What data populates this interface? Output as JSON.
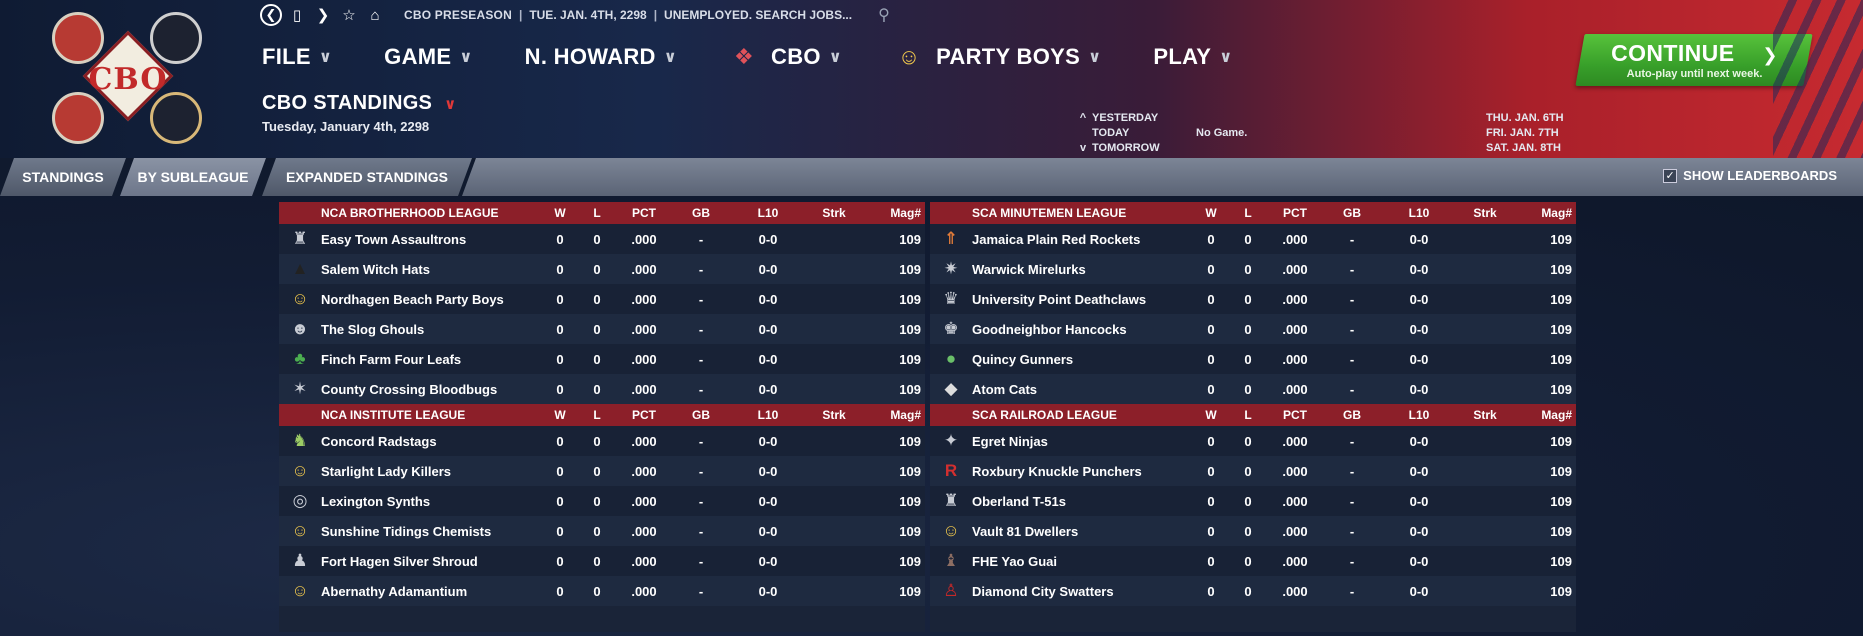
{
  "header": {
    "logo_text": "CBO",
    "status": {
      "season": "CBO PRESEASON",
      "date": "TUE. JAN. 4TH, 2298",
      "job": "UNEMPLOYED. SEARCH JOBS..."
    },
    "nav": [
      {
        "label": "FILE",
        "icon": ""
      },
      {
        "label": "GAME",
        "icon": ""
      },
      {
        "label": "N. HOWARD",
        "icon": ""
      },
      {
        "label": "CBO",
        "icon": "cbo-league-logo"
      },
      {
        "label": "PARTY BOYS",
        "icon": "vault-boy-mascot"
      },
      {
        "label": "PLAY",
        "icon": ""
      }
    ],
    "page_title": "CBO STANDINGS",
    "page_date": "Tuesday, January 4th, 2298",
    "schedule": {
      "rows": [
        {
          "arrow": "^",
          "label": "YESTERDAY",
          "game": "",
          "next": "THU. JAN. 6TH"
        },
        {
          "arrow": "",
          "label": "TODAY",
          "game": "No Game.",
          "next": "FRI. JAN. 7TH"
        },
        {
          "arrow": "v",
          "label": "TOMORROW",
          "game": "",
          "next": "SAT. JAN. 8TH"
        }
      ]
    },
    "continue": {
      "label": "CONTINUE",
      "sub": "Auto-play until next week."
    }
  },
  "tabs": [
    "STANDINGS",
    "BY SUBLEAGUE",
    "EXPANDED STANDINGS"
  ],
  "show_leaderboards": "SHOW LEADERBOARDS",
  "columns": [
    "W",
    "L",
    "PCT",
    "GB",
    "L10",
    "Strk",
    "Mag#"
  ],
  "leagues": {
    "left": [
      {
        "name": "NCA BROTHERHOOD LEAGUE",
        "teams": [
          {
            "name": "Easy Town Assaultrons",
            "icon": "robot-icon",
            "w": "0",
            "l": "0",
            "pct": ".000",
            "gb": "-",
            "l10": "0-0",
            "strk": "",
            "mag": "109"
          },
          {
            "name": "Salem Witch Hats",
            "icon": "witch-hat-icon",
            "w": "0",
            "l": "0",
            "pct": ".000",
            "gb": "-",
            "l10": "0-0",
            "strk": "",
            "mag": "109"
          },
          {
            "name": "Nordhagen Beach Party Boys",
            "icon": "vault-boy-icon",
            "w": "0",
            "l": "0",
            "pct": ".000",
            "gb": "-",
            "l10": "0-0",
            "strk": "",
            "mag": "109"
          },
          {
            "name": "The Slog Ghouls",
            "icon": "ghoul-icon",
            "w": "0",
            "l": "0",
            "pct": ".000",
            "gb": "-",
            "l10": "0-0",
            "strk": "",
            "mag": "109"
          },
          {
            "name": "Finch Farm Four Leafs",
            "icon": "leprechaun-icon",
            "w": "0",
            "l": "0",
            "pct": ".000",
            "gb": "-",
            "l10": "0-0",
            "strk": "",
            "mag": "109"
          },
          {
            "name": "County Crossing Bloodbugs",
            "icon": "bloodbug-icon",
            "w": "0",
            "l": "0",
            "pct": ".000",
            "gb": "-",
            "l10": "0-0",
            "strk": "",
            "mag": "109"
          }
        ]
      },
      {
        "name": "NCA INSTITUTE LEAGUE",
        "teams": [
          {
            "name": "Concord Radstags",
            "icon": "radstag-icon",
            "w": "0",
            "l": "0",
            "pct": ".000",
            "gb": "-",
            "l10": "0-0",
            "strk": "",
            "mag": "109"
          },
          {
            "name": "Starlight Lady Killers",
            "icon": "vault-boy-icon",
            "w": "0",
            "l": "0",
            "pct": ".000",
            "gb": "-",
            "l10": "0-0",
            "strk": "",
            "mag": "109"
          },
          {
            "name": "Lexington Synths",
            "icon": "synth-icon",
            "w": "0",
            "l": "0",
            "pct": ".000",
            "gb": "-",
            "l10": "0-0",
            "strk": "",
            "mag": "109"
          },
          {
            "name": "Sunshine Tidings Chemists",
            "icon": "vault-boy-icon",
            "w": "0",
            "l": "0",
            "pct": ".000",
            "gb": "-",
            "l10": "0-0",
            "strk": "",
            "mag": "109"
          },
          {
            "name": "Fort Hagen Silver Shroud",
            "icon": "shroud-icon",
            "w": "0",
            "l": "0",
            "pct": ".000",
            "gb": "-",
            "l10": "0-0",
            "strk": "",
            "mag": "109"
          },
          {
            "name": "Abernathy Adamantium",
            "icon": "vault-boy-icon",
            "w": "0",
            "l": "0",
            "pct": ".000",
            "gb": "-",
            "l10": "0-0",
            "strk": "",
            "mag": "109"
          }
        ]
      }
    ],
    "right": [
      {
        "name": "SCA MINUTEMEN LEAGUE",
        "teams": [
          {
            "name": "Jamaica Plain Red Rockets",
            "icon": "rocket-icon",
            "w": "0",
            "l": "0",
            "pct": ".000",
            "gb": "-",
            "l10": "0-0",
            "strk": "",
            "mag": "109"
          },
          {
            "name": "Warwick Mirelurks",
            "icon": "mirelurk-icon",
            "w": "0",
            "l": "0",
            "pct": ".000",
            "gb": "-",
            "l10": "0-0",
            "strk": "",
            "mag": "109"
          },
          {
            "name": "University Point Deathclaws",
            "icon": "deathclaw-icon",
            "w": "0",
            "l": "0",
            "pct": ".000",
            "gb": "-",
            "l10": "0-0",
            "strk": "",
            "mag": "109"
          },
          {
            "name": "Goodneighbor Hancocks",
            "icon": "hancock-icon",
            "w": "0",
            "l": "0",
            "pct": ".000",
            "gb": "-",
            "l10": "0-0",
            "strk": "",
            "mag": "109"
          },
          {
            "name": "Quincy Gunners",
            "icon": "gunner-icon",
            "w": "0",
            "l": "0",
            "pct": ".000",
            "gb": "-",
            "l10": "0-0",
            "strk": "",
            "mag": "109"
          },
          {
            "name": "Atom Cats",
            "icon": "cat-icon",
            "w": "0",
            "l": "0",
            "pct": ".000",
            "gb": "-",
            "l10": "0-0",
            "strk": "",
            "mag": "109"
          }
        ]
      },
      {
        "name": "SCA RAILROAD LEAGUE",
        "teams": [
          {
            "name": "Egret Ninjas",
            "icon": "ninja-icon",
            "w": "0",
            "l": "0",
            "pct": ".000",
            "gb": "-",
            "l10": "0-0",
            "strk": "",
            "mag": "109"
          },
          {
            "name": "Roxbury Knuckle Punchers",
            "icon": "letter-r-icon",
            "w": "0",
            "l": "0",
            "pct": ".000",
            "gb": "-",
            "l10": "0-0",
            "strk": "",
            "mag": "109"
          },
          {
            "name": "Oberland T-51s",
            "icon": "power-armor-icon",
            "w": "0",
            "l": "0",
            "pct": ".000",
            "gb": "-",
            "l10": "0-0",
            "strk": "",
            "mag": "109"
          },
          {
            "name": "Vault 81 Dwellers",
            "icon": "vault-boy-icon",
            "w": "0",
            "l": "0",
            "pct": ".000",
            "gb": "-",
            "l10": "0-0",
            "strk": "",
            "mag": "109"
          },
          {
            "name": "FHE Yao Guai",
            "icon": "bear-icon",
            "w": "0",
            "l": "0",
            "pct": ".000",
            "gb": "-",
            "l10": "0-0",
            "strk": "",
            "mag": "109"
          },
          {
            "name": "Diamond City Swatters",
            "icon": "swatter-icon",
            "w": "0",
            "l": "0",
            "pct": ".000",
            "gb": "-",
            "l10": "0-0",
            "strk": "",
            "mag": "109"
          }
        ]
      }
    ]
  },
  "icon_glyphs": {
    "robot-icon": "♜",
    "witch-hat-icon": "▲",
    "vault-boy-icon": "☺",
    "ghoul-icon": "☻",
    "leprechaun-icon": "♣",
    "bloodbug-icon": "✶",
    "radstag-icon": "♞",
    "synth-icon": "◎",
    "shroud-icon": "♟",
    "rocket-icon": "⇑",
    "mirelurk-icon": "✷",
    "deathclaw-icon": "♛",
    "hancock-icon": "♚",
    "gunner-icon": "●",
    "cat-icon": "◆",
    "ninja-icon": "✦",
    "letter-r-icon": "R",
    "power-armor-icon": "♜",
    "bear-icon": "♝",
    "swatter-icon": "♙"
  },
  "colors": {
    "accent_red": "#8c1f29",
    "continue_green": "#38a02a",
    "header_red": "#c62a30",
    "header_navy": "#0f1b33"
  }
}
